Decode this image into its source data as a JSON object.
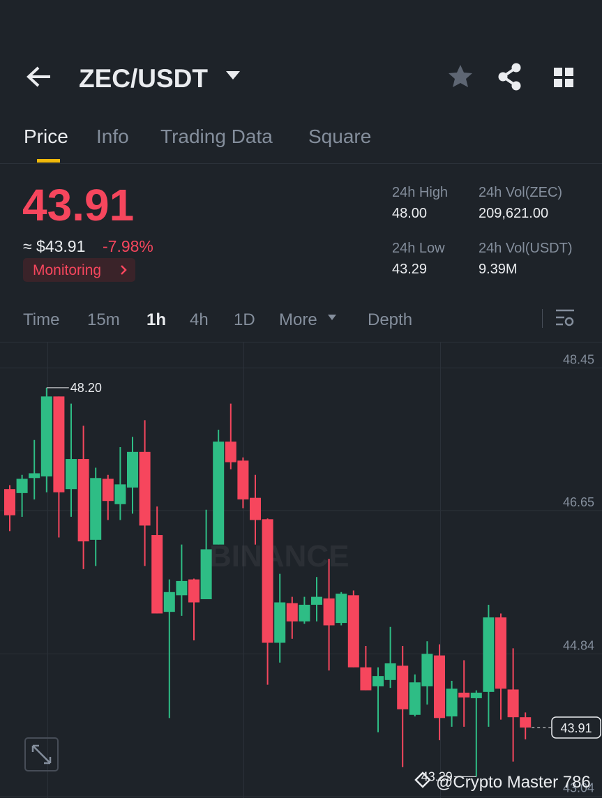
{
  "header": {
    "pair": "ZEC/USDT"
  },
  "tabs": [
    "Price",
    "Info",
    "Trading Data",
    "Square"
  ],
  "ticker": {
    "last": "43.91",
    "approx": "≈ $43.91",
    "change": "-7.98%",
    "monitoring": "Monitoring",
    "stats": [
      {
        "label": "24h High",
        "value": "48.00"
      },
      {
        "label": "24h Vol(ZEC)",
        "value": "209,621.00"
      },
      {
        "label": "24h Low",
        "value": "43.29"
      },
      {
        "label": "24h Vol(USDT)",
        "value": "9.39M"
      }
    ]
  },
  "intervals": [
    "Time",
    "15m",
    "1h",
    "4h",
    "1D",
    "More",
    "Depth"
  ],
  "chart_data": {
    "type": "candlestick",
    "watermark": "BINANCE",
    "up_color": "#2ebd85",
    "down_color": "#f6465d",
    "grid": true,
    "ylim": [
      43.02,
      48.78
    ],
    "yticks": [
      48.45,
      46.65,
      44.84,
      43.04
    ],
    "open": [
      46.92,
      46.87,
      47.06,
      47.08,
      48.09,
      46.92,
      47.3,
      46.28,
      47.05,
      46.73,
      46.94,
      47.39,
      46.34,
      45.37,
      45.58,
      45.78,
      45.53,
      46.22,
      47.52,
      47.28,
      46.81,
      46.54,
      44.98,
      45.48,
      45.25,
      45.46,
      45.54,
      45.23,
      45.58,
      44.67,
      44.43,
      44.51,
      44.69,
      44.07,
      44.43,
      44.82,
      44.05,
      44.35,
      44.28,
      44.36,
      45.3,
      44.39,
      44.04
    ],
    "high": [
      46.97,
      47.1,
      47.54,
      48.2,
      48.09,
      48.0,
      47.72,
      47.19,
      47.1,
      47.45,
      47.58,
      47.79,
      46.7,
      45.78,
      46.22,
      45.79,
      46.66,
      47.67,
      48.0,
      47.32,
      47.1,
      46.55,
      45.85,
      45.56,
      45.56,
      45.81,
      46.04,
      45.62,
      45.64,
      44.94,
      44.67,
      45.18,
      44.94,
      44.58,
      45.0,
      44.96,
      44.5,
      44.76,
      44.38,
      45.46,
      45.35,
      44.91,
      44.1
    ],
    "low": [
      46.39,
      46.57,
      46.79,
      46.88,
      46.31,
      46.57,
      45.91,
      45.95,
      46.53,
      46.53,
      46.61,
      45.95,
      45.35,
      44.03,
      45.32,
      45.01,
      45.53,
      46.22,
      47.17,
      46.68,
      46.22,
      44.45,
      44.73,
      45.03,
      45.22,
      45.25,
      44.63,
      45.2,
      44.67,
      44.38,
      43.85,
      44.41,
      43.41,
      44.05,
      44.2,
      43.75,
      43.92,
      43.92,
      43.29,
      43.92,
      44.01,
      43.48,
      43.76
    ],
    "close": [
      46.59,
      47.05,
      47.12,
      48.09,
      46.88,
      47.3,
      46.26,
      47.06,
      46.77,
      46.98,
      47.39,
      46.46,
      45.35,
      45.62,
      45.76,
      45.49,
      46.16,
      47.52,
      47.26,
      46.79,
      46.53,
      44.98,
      45.49,
      45.25,
      45.46,
      45.56,
      45.2,
      45.6,
      44.67,
      44.38,
      44.56,
      44.72,
      44.14,
      44.48,
      44.84,
      44.03,
      44.4,
      44.29,
      44.35,
      45.3,
      44.4,
      44.04,
      43.91
    ],
    "high_label": {
      "value": 48.2,
      "label": "48.20"
    },
    "low_label": {
      "value": 43.29,
      "label": "43.29"
    },
    "last_price": {
      "value": 43.91,
      "label": "43.91"
    }
  },
  "credit": "@Crypto Master 786"
}
